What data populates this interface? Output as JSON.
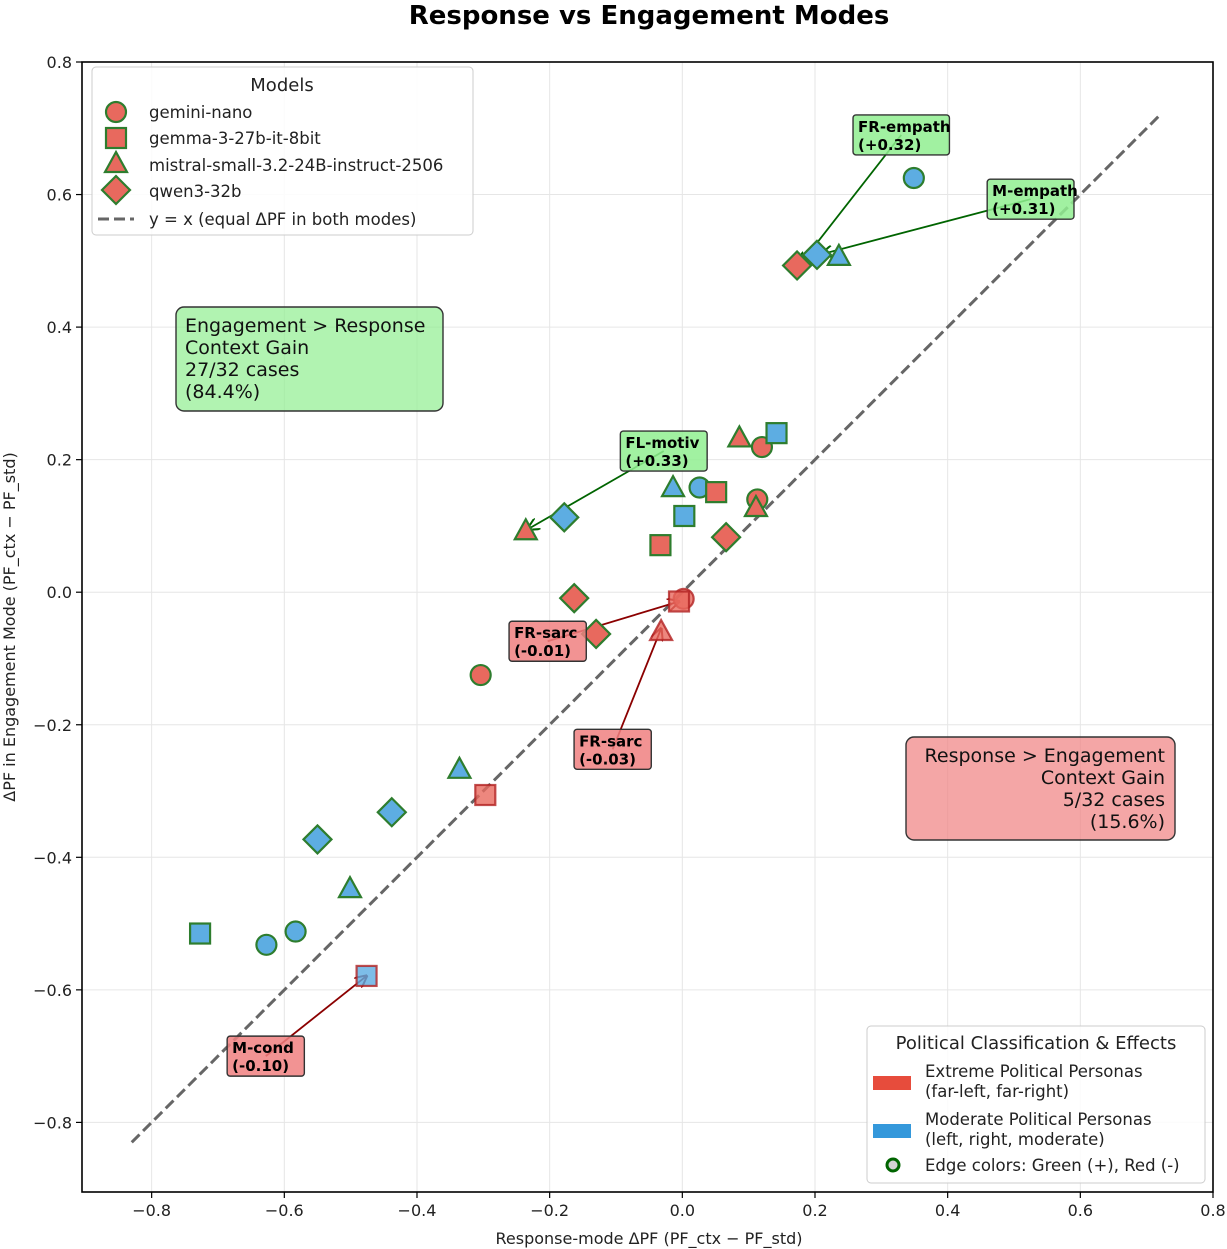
{
  "chart_data": {
    "type": "scatter",
    "title": "Response vs Engagement Modes",
    "xlabel": "Response-mode ΔPF (PF_ctx − PF_std)",
    "ylabel": "ΔPF in Engagement Mode (PF_ctx − PF_std)",
    "xlim": [
      -0.905,
      0.8
    ],
    "ylim": [
      -0.905,
      0.8
    ],
    "grid": true,
    "x_ticks": [
      -0.8,
      -0.6,
      -0.4,
      -0.2,
      0.0,
      0.2,
      0.4,
      0.6,
      0.8
    ],
    "y_ticks": [
      -0.8,
      -0.6,
      -0.4,
      -0.2,
      0.0,
      0.2,
      0.4,
      0.6,
      0.8
    ],
    "x_tick_labels": [
      "−0.8",
      "−0.6",
      "−0.4",
      "−0.2",
      "0.0",
      "0.2",
      "0.4",
      "0.6",
      "0.8"
    ],
    "y_tick_labels": [
      "−0.8",
      "−0.6",
      "−0.4",
      "−0.2",
      "0.0",
      "0.2",
      "0.4",
      "0.6",
      "0.8"
    ],
    "reference_line": {
      "label": "y = x (equal ΔPF in both modes)",
      "from": -0.83,
      "to": 0.72,
      "color": "#666666"
    },
    "colors": {
      "extreme_fill": "#e8695e",
      "moderate_fill": "#5dade2",
      "edge_positive": "#2e7d2e",
      "edge_negative": "#b22222"
    },
    "models": [
      {
        "name": "gemini-nano",
        "marker": "circle"
      },
      {
        "name": "gemma-3-27b-it-8bit",
        "marker": "square"
      },
      {
        "name": "mistral-small-3.2-24B-instruct-2506",
        "marker": "triangle"
      },
      {
        "name": "qwen3-32b",
        "marker": "diamond"
      }
    ],
    "points": [
      {
        "model": "gemini-nano",
        "x": 0.349,
        "y": 0.625,
        "group": "moderate",
        "effect": "+"
      },
      {
        "model": "gemini-nano",
        "x": 0.12,
        "y": 0.219,
        "group": "extreme",
        "effect": "+"
      },
      {
        "model": "gemini-nano",
        "x": 0.026,
        "y": 0.158,
        "group": "moderate",
        "effect": "+"
      },
      {
        "model": "gemini-nano",
        "x": 0.113,
        "y": 0.14,
        "group": "extreme",
        "effect": "+"
      },
      {
        "model": "gemini-nano",
        "x": 0.002,
        "y": -0.01,
        "group": "extreme",
        "effect": "-"
      },
      {
        "model": "gemini-nano",
        "x": -0.304,
        "y": -0.125,
        "group": "extreme",
        "effect": "+"
      },
      {
        "model": "gemini-nano",
        "x": -0.583,
        "y": -0.512,
        "group": "moderate",
        "effect": "+"
      },
      {
        "model": "gemini-nano",
        "x": -0.627,
        "y": -0.532,
        "group": "moderate",
        "effect": "+"
      },
      {
        "model": "gemma-3-27b-it-8bit",
        "x": 0.142,
        "y": 0.24,
        "group": "moderate",
        "effect": "+"
      },
      {
        "model": "gemma-3-27b-it-8bit",
        "x": 0.051,
        "y": 0.151,
        "group": "extreme",
        "effect": "+"
      },
      {
        "model": "gemma-3-27b-it-8bit",
        "x": 0.003,
        "y": 0.115,
        "group": "moderate",
        "effect": "+"
      },
      {
        "model": "gemma-3-27b-it-8bit",
        "x": -0.033,
        "y": 0.071,
        "group": "extreme",
        "effect": "+"
      },
      {
        "model": "gemma-3-27b-it-8bit",
        "x": -0.005,
        "y": -0.014,
        "group": "extreme",
        "effect": "-"
      },
      {
        "model": "gemma-3-27b-it-8bit",
        "x": -0.297,
        "y": -0.306,
        "group": "extreme",
        "effect": "-"
      },
      {
        "model": "gemma-3-27b-it-8bit",
        "x": -0.727,
        "y": -0.515,
        "group": "moderate",
        "effect": "+"
      },
      {
        "model": "gemma-3-27b-it-8bit",
        "x": -0.476,
        "y": -0.579,
        "group": "moderate",
        "effect": "-"
      },
      {
        "model": "mistral-small-3.2-24B-instruct-2506",
        "x": 0.236,
        "y": 0.506,
        "group": "moderate",
        "effect": "+"
      },
      {
        "model": "mistral-small-3.2-24B-instruct-2506",
        "x": 0.086,
        "y": 0.232,
        "group": "extreme",
        "effect": "+"
      },
      {
        "model": "mistral-small-3.2-24B-instruct-2506",
        "x": -0.014,
        "y": 0.157,
        "group": "moderate",
        "effect": "+"
      },
      {
        "model": "mistral-small-3.2-24B-instruct-2506",
        "x": 0.111,
        "y": 0.127,
        "group": "extreme",
        "effect": "+"
      },
      {
        "model": "mistral-small-3.2-24B-instruct-2506",
        "x": -0.236,
        "y": 0.092,
        "group": "extreme",
        "effect": "+"
      },
      {
        "model": "mistral-small-3.2-24B-instruct-2506",
        "x": -0.032,
        "y": -0.06,
        "group": "extreme",
        "effect": "-"
      },
      {
        "model": "mistral-small-3.2-24B-instruct-2506",
        "x": -0.336,
        "y": -0.268,
        "group": "moderate",
        "effect": "+"
      },
      {
        "model": "mistral-small-3.2-24B-instruct-2506",
        "x": -0.501,
        "y": -0.448,
        "group": "moderate",
        "effect": "+"
      },
      {
        "model": "qwen3-32b",
        "x": 0.173,
        "y": 0.493,
        "group": "extreme",
        "effect": "+"
      },
      {
        "model": "qwen3-32b",
        "x": 0.203,
        "y": 0.509,
        "group": "moderate",
        "effect": "+"
      },
      {
        "model": "qwen3-32b",
        "x": -0.178,
        "y": 0.113,
        "group": "moderate",
        "effect": "+"
      },
      {
        "model": "qwen3-32b",
        "x": 0.066,
        "y": 0.083,
        "group": "extreme",
        "effect": "+"
      },
      {
        "model": "qwen3-32b",
        "x": -0.163,
        "y": -0.009,
        "group": "extreme",
        "effect": "+"
      },
      {
        "model": "qwen3-32b",
        "x": -0.13,
        "y": -0.063,
        "group": "extreme",
        "effect": "+"
      },
      {
        "model": "qwen3-32b",
        "x": -0.438,
        "y": -0.332,
        "group": "moderate",
        "effect": "+"
      },
      {
        "model": "qwen3-32b",
        "x": -0.55,
        "y": -0.373,
        "group": "moderate",
        "effect": "+"
      }
    ],
    "annotations": [
      {
        "line1": "FR-empath",
        "line2": "(+0.32)",
        "effect": "+",
        "label_x": 0.33,
        "label_y": 0.69,
        "target_x": 0.178,
        "target_y": 0.495
      },
      {
        "line1": "M-empath",
        "line2": "(+0.31)",
        "effect": "+",
        "label_x": 0.525,
        "label_y": 0.593,
        "target_x": 0.21,
        "target_y": 0.51
      },
      {
        "line1": "FL-motiv",
        "line2": "(+0.33)",
        "effect": "+",
        "label_x": -0.028,
        "label_y": 0.213,
        "target_x": -0.233,
        "target_y": 0.095
      },
      {
        "line1": "FR-sarc",
        "line2": "(-0.01)",
        "effect": "-",
        "label_x": -0.203,
        "label_y": -0.074,
        "target_x": -0.005,
        "target_y": -0.014
      },
      {
        "line1": "FR-sarc",
        "line2": "(-0.03)",
        "effect": "-",
        "label_x": -0.105,
        "label_y": -0.237,
        "target_x": -0.032,
        "target_y": -0.055
      },
      {
        "line1": "M-cond",
        "line2": "(-0.10)",
        "effect": "-",
        "label_x": -0.628,
        "label_y": -0.7,
        "target_x": -0.476,
        "target_y": -0.579
      }
    ],
    "info_boxes": [
      {
        "lines": [
          "Engagement > Response",
          "Context Gain",
          "27/32 cases",
          "(84.4%)"
        ],
        "align": "left",
        "position": "upper-left",
        "color": "#90ee90"
      },
      {
        "lines": [
          "Response > Engagement",
          "Context Gain",
          "5/32 cases",
          "(15.6%)"
        ],
        "align": "right",
        "position": "lower-right",
        "color": "#f08080"
      }
    ],
    "legend_models": {
      "title": "Models",
      "position": "top-left",
      "entries": [
        "gemini-nano",
        "gemma-3-27b-it-8bit",
        "mistral-small-3.2-24B-instruct-2506",
        "qwen3-32b",
        "y = x (equal ΔPF in both modes)"
      ]
    },
    "legend_classification": {
      "title": "Political Classification & Effects",
      "position": "bottom-right",
      "entries": [
        {
          "line1": "Extreme Political Personas",
          "line2": "(far-left, far-right)",
          "color": "#e74c3c"
        },
        {
          "line1": "Moderate Political Personas",
          "line2": "(left, right, moderate)",
          "color": "#3498db"
        },
        {
          "line1": "Edge colors: Green (+), Red (-)",
          "line2": ""
        }
      ]
    }
  }
}
